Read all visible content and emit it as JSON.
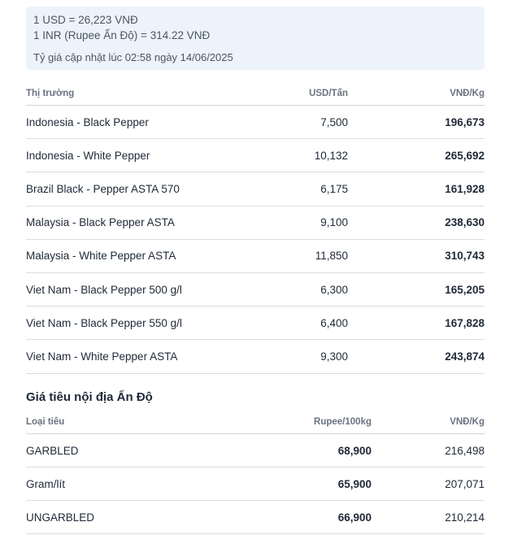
{
  "rates": {
    "usd": "1 USD = 26,223 VNĐ",
    "inr": "1 INR (Rupee Ấn Độ) = 314.22 VNĐ",
    "updated": "Tỷ giá cập nhật lúc 02:58 ngày 14/06/2025"
  },
  "market": {
    "headers": {
      "market": "Thị trường",
      "usd": "USD/Tấn",
      "vnd": "VNĐ/Kg"
    },
    "rows": [
      {
        "market": "Indonesia - Black Pepper",
        "usd": "7,500",
        "vnd": "196,673"
      },
      {
        "market": "Indonesia - White Pepper",
        "usd": "10,132",
        "vnd": "265,692"
      },
      {
        "market": "Brazil Black - Pepper ASTA 570",
        "usd": "6,175",
        "vnd": "161,928"
      },
      {
        "market": "Malaysia - Black Pepper ASTA",
        "usd": "9,100",
        "vnd": "238,630"
      },
      {
        "market": "Malaysia - White Pepper ASTA",
        "usd": "11,850",
        "vnd": "310,743"
      },
      {
        "market": "Viet Nam - Black Pepper 500 g/l",
        "usd": "6,300",
        "vnd": "165,205"
      },
      {
        "market": "Viet Nam - Black Pepper 550 g/l",
        "usd": "6,400",
        "vnd": "167,828"
      },
      {
        "market": "Viet Nam - White Pepper ASTA",
        "usd": "9,300",
        "vnd": "243,874"
      }
    ]
  },
  "domestic": {
    "title": "Giá tiêu nội địa Ấn Độ",
    "headers": {
      "type": "Loại tiêu",
      "rupee": "Rupee/100kg",
      "vnd": "VNĐ/Kg"
    },
    "rows": [
      {
        "type": "GARBLED",
        "rupee": "68,900",
        "vnd": "216,498"
      },
      {
        "type": "Gram/lít",
        "rupee": "65,900",
        "vnd": "207,071"
      },
      {
        "type": "UNGARBLED",
        "rupee": "66,900",
        "vnd": "210,214"
      }
    ]
  }
}
